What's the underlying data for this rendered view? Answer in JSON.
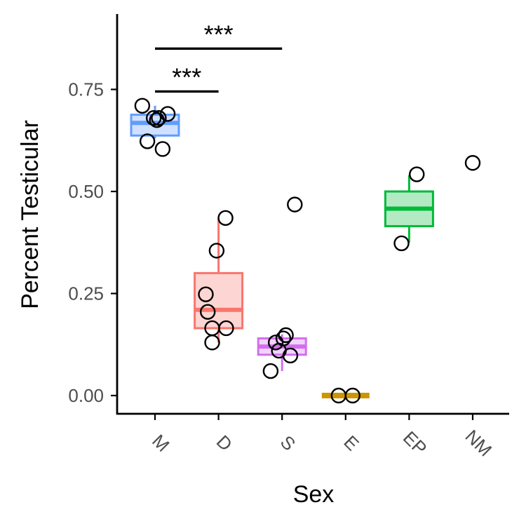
{
  "chart_data": {
    "type": "box",
    "xlabel": "Sex",
    "ylabel": "Percent Testicular",
    "ylim": [
      -0.04,
      0.93
    ],
    "yticks": [
      0,
      0.25,
      0.5,
      0.75
    ],
    "ytick_labels": [
      "0.00",
      "0.25",
      "0.50",
      "0.75"
    ],
    "categories": [
      "M",
      "D",
      "S",
      "E",
      "EP",
      "NM"
    ],
    "legend": "none",
    "grid": false,
    "groups": [
      {
        "category": "M",
        "color": "#619CFF",
        "box": {
          "q1": 0.637,
          "median": 0.668,
          "q3": 0.688,
          "whisker_low": 0.63,
          "whisker_high": 0.71
        },
        "points": [
          0.71,
          0.68,
          0.675,
          0.68,
          0.69,
          0.623,
          0.604
        ],
        "jitter": [
          -0.2,
          -0.02,
          0.03,
          0.06,
          0.2,
          -0.12,
          0.12
        ]
      },
      {
        "category": "D",
        "color": "#F8766D",
        "box": {
          "q1": 0.165,
          "median": 0.21,
          "q3": 0.3,
          "whisker_low": 0.13,
          "whisker_high": 0.435
        },
        "points": [
          0.435,
          0.355,
          0.248,
          0.205,
          0.165,
          0.165,
          0.13
        ],
        "jitter": [
          0.11,
          -0.03,
          -0.2,
          -0.17,
          -0.1,
          0.12,
          -0.1
        ]
      },
      {
        "category": "S",
        "color": "#D36EF0",
        "box": {
          "q1": 0.1,
          "median": 0.12,
          "q3": 0.14,
          "whisker_low": 0.06,
          "whisker_high": 0.15
        },
        "points": [
          0.468,
          0.148,
          0.14,
          0.13,
          0.11,
          0.098,
          0.06
        ],
        "jitter": [
          0.2,
          0.06,
          0.02,
          -0.1,
          -0.05,
          0.13,
          -0.18
        ]
      },
      {
        "category": "E",
        "color": "#CD9600",
        "box": {
          "q1": 0.0,
          "median": 0.0,
          "q3": 0.0,
          "whisker_low": 0.0,
          "whisker_high": 0.0
        },
        "points": [
          0.0,
          0.0
        ],
        "jitter": [
          -0.11,
          0.11
        ]
      },
      {
        "category": "EP",
        "color": "#00BA38",
        "box": {
          "q1": 0.415,
          "median": 0.458,
          "q3": 0.5,
          "whisker_low": 0.375,
          "whisker_high": 0.54
        },
        "points": [
          0.542,
          0.373
        ],
        "jitter": [
          0.12,
          -0.12
        ]
      },
      {
        "category": "NM",
        "color": "#000000",
        "box": null,
        "points": [
          0.57
        ],
        "jitter": [
          0.0
        ]
      }
    ],
    "annotations": [
      {
        "from": "M",
        "to": "S",
        "y": 0.85,
        "label": "***"
      },
      {
        "from": "M",
        "to": "D",
        "y": 0.745,
        "label": "***"
      }
    ]
  }
}
